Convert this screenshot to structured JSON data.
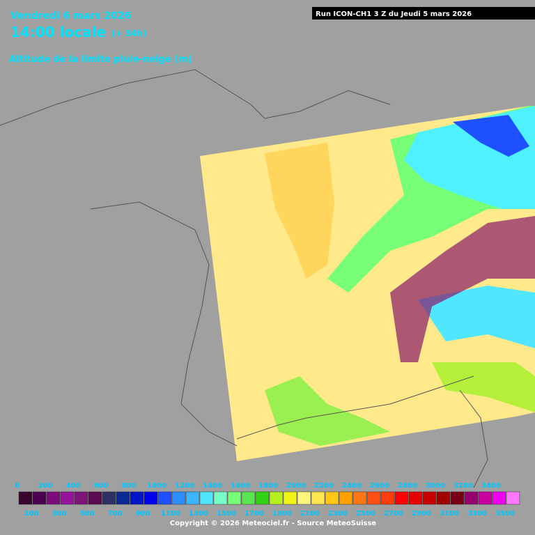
{
  "header": {
    "date": "Vendredi 6 mars 2026",
    "time": "14:00 locale",
    "lead": "(+ 34h)",
    "parameter": "Altitude de la limite pluie-neige (m)",
    "run": "Run ICON-CH1 3 Z du Jeudi 5 mars 2026"
  },
  "legend": {
    "values": [
      0,
      100,
      200,
      300,
      400,
      500,
      600,
      700,
      800,
      900,
      1000,
      1100,
      1200,
      1300,
      1400,
      1500,
      1600,
      1700,
      1800,
      1900,
      2000,
      2100,
      2200,
      2300,
      2400,
      2500,
      2600,
      2700,
      2800,
      2900,
      3000,
      3100,
      3200,
      3300,
      3400,
      3500
    ],
    "colors": [
      "#37052d",
      "#4e0050",
      "#7a0d7a",
      "#96149b",
      "#7e1478",
      "#5a0a50",
      "#2d3264",
      "#0a2896",
      "#0014c8",
      "#0000f0",
      "#1e50ff",
      "#2d8cff",
      "#3cb4ff",
      "#50e6ff",
      "#78ffc8",
      "#78ff78",
      "#5ae650",
      "#32d214",
      "#b4f01e",
      "#f0f514",
      "#fff57a",
      "#ffe650",
      "#ffc814",
      "#ffa000",
      "#ff7814",
      "#ff5014",
      "#ff3c0a",
      "#ff0000",
      "#e60000",
      "#c80000",
      "#a00000",
      "#780014",
      "#96006e",
      "#c800a0",
      "#f000f0",
      "#ff78ff"
    ]
  },
  "footer": {
    "copyright": "Copyright © 2026 Meteociel.fr - Source MeteoSuisse"
  }
}
